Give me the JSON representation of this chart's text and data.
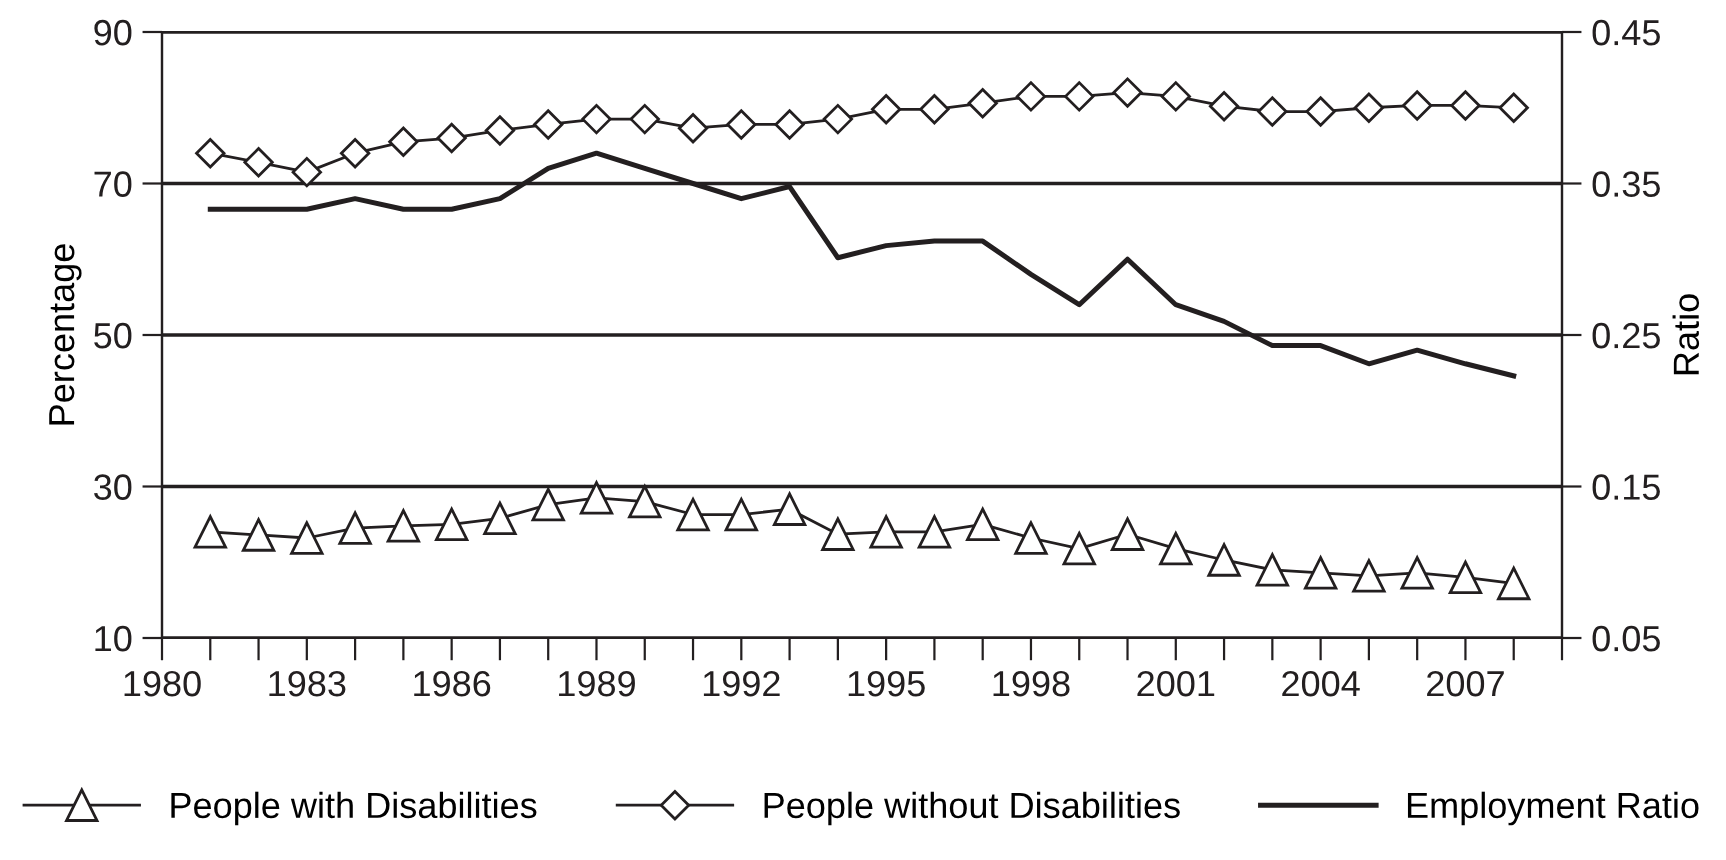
{
  "chart_data": {
    "type": "line",
    "ylabel": "Percentage",
    "y2label": "Ratio",
    "x": [
      1981,
      1982,
      1983,
      1984,
      1985,
      1986,
      1987,
      1988,
      1989,
      1990,
      1991,
      1992,
      1993,
      1994,
      1995,
      1996,
      1997,
      1998,
      1999,
      2000,
      2001,
      2002,
      2003,
      2004,
      2005,
      2006,
      2007,
      2008
    ],
    "series": [
      {
        "name": "People with Disabilities",
        "color": "#231f20",
        "marker": "triangle",
        "values": [
          24,
          23.6,
          23.2,
          24.5,
          24.8,
          25,
          25.8,
          27.6,
          28.5,
          28,
          26.3,
          26.3,
          27,
          23.7,
          24,
          24,
          25,
          23.2,
          21.8,
          23.7,
          21.8,
          20.3,
          19,
          18.6,
          18.2,
          18.6,
          18,
          17.2
        ]
      },
      {
        "name": "People without Disabilities",
        "color": "#231f20",
        "marker": "diamond",
        "values": [
          74,
          72.8,
          71.5,
          74,
          75.5,
          76,
          77,
          77.8,
          78.5,
          78.5,
          77.3,
          77.8,
          77.8,
          78.5,
          79.8,
          79.8,
          80.6,
          81.5,
          81.5,
          82,
          81.5,
          80.2,
          79.5,
          79.5,
          80,
          80.3,
          80.3,
          80
        ]
      },
      {
        "name": "Employment Ratio",
        "color": "#231f20",
        "marker": "none",
        "axis": "y2",
        "values": [
          0.333,
          0.333,
          0.333,
          0.34,
          0.333,
          0.333,
          0.34,
          0.36,
          0.37,
          0.36,
          0.35,
          0.34,
          0.348,
          0.301,
          0.309,
          0.312,
          0.312,
          0.29,
          0.27,
          0.3,
          0.27,
          0.259,
          0.243,
          0.243,
          0.231,
          0.24,
          0.231,
          0.223
        ]
      }
    ],
    "xlim": [
      1980,
      2009
    ],
    "xticks": [
      1980,
      {
        "value": 1981,
        "label": null
      },
      {
        "value": 1982,
        "label": null
      },
      1983,
      {
        "value": 1984,
        "label": null
      },
      {
        "value": 1985,
        "label": null
      },
      1986,
      {
        "value": 1987,
        "label": null
      },
      {
        "value": 1988,
        "label": null
      },
      1989,
      {
        "value": 1990,
        "label": null
      },
      {
        "value": 1991,
        "label": null
      },
      1992,
      {
        "value": 1993,
        "label": null
      },
      {
        "value": 1994,
        "label": null
      },
      1995,
      {
        "value": 1996,
        "label": null
      },
      {
        "value": 1997,
        "label": null
      },
      1998,
      {
        "value": 1999,
        "label": null
      },
      {
        "value": 2000,
        "label": null
      },
      2001,
      {
        "value": 2002,
        "label": null
      },
      {
        "value": 2003,
        "label": null
      },
      2004,
      {
        "value": 2005,
        "label": null
      },
      {
        "value": 2006,
        "label": null
      },
      2007,
      {
        "value": 2008,
        "label": null
      },
      {
        "value": 2009,
        "label": null
      }
    ],
    "ylim": [
      10,
      90
    ],
    "yticks": [
      10,
      30,
      50,
      70,
      90
    ],
    "y2lim": [
      0.05,
      0.45
    ],
    "y2ticks": [
      0.05,
      0.15,
      0.25,
      0.35,
      0.45
    ],
    "grid": "y",
    "legend": "bottom",
    "line_style": "solid"
  }
}
